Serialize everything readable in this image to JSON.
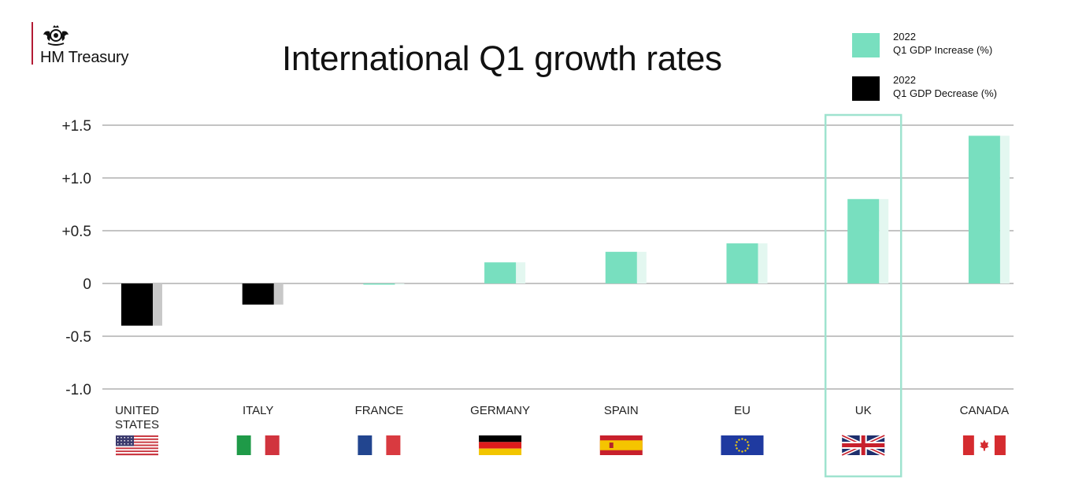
{
  "header": {
    "org_name": "HM Treasury",
    "title": "International Q1 growth rates"
  },
  "legend": {
    "increase": {
      "year": "2022",
      "label": "Q1 GDP Increase (%)",
      "color": "#78dfbf"
    },
    "decrease": {
      "year": "2022",
      "label": "Q1 GDP Decrease (%)",
      "color": "#000000"
    }
  },
  "highlight": {
    "category": "UK",
    "color": "#9fe3cf"
  },
  "chart_data": {
    "type": "bar",
    "title": "International Q1 growth rates",
    "xlabel": "",
    "ylabel": "",
    "ylim": [
      -1.0,
      1.5
    ],
    "yticks": [
      {
        "value": 1.5,
        "label": "+1.5"
      },
      {
        "value": 1.0,
        "label": "+1.0"
      },
      {
        "value": 0.5,
        "label": "+0.5"
      },
      {
        "value": 0,
        "label": "0"
      },
      {
        "value": -0.5,
        "label": "-0.5"
      },
      {
        "value": -1.0,
        "label": "-1.0"
      }
    ],
    "grid": true,
    "legend_position": "top-right",
    "categories": [
      {
        "label": [
          "UNITED",
          "STATES"
        ],
        "flag": "us-flag",
        "value": -0.4
      },
      {
        "label": [
          "ITALY"
        ],
        "flag": "italy-flag",
        "value": -0.2
      },
      {
        "label": [
          "FRANCE"
        ],
        "flag": "france-flag",
        "value": 0.0
      },
      {
        "label": [
          "GERMANY"
        ],
        "flag": "germany-flag",
        "value": 0.2
      },
      {
        "label": [
          "SPAIN"
        ],
        "flag": "spain-flag",
        "value": 0.3
      },
      {
        "label": [
          "EU"
        ],
        "flag": "eu-flag",
        "value": 0.38
      },
      {
        "label": [
          "UK"
        ],
        "flag": "uk-flag",
        "value": 0.8
      },
      {
        "label": [
          "CANADA"
        ],
        "flag": "canada-flag",
        "value": 1.4
      }
    ],
    "series_colors": {
      "increase": "#78dfbf",
      "increase_shadow": "#e3f7f0",
      "decrease": "#000000",
      "decrease_shadow": "#c8c8c8"
    }
  }
}
